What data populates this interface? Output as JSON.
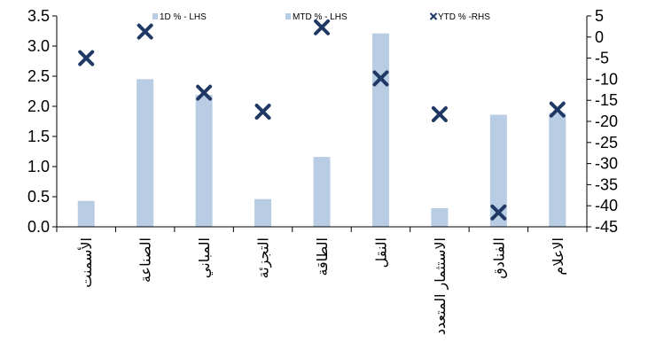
{
  "chart_data": {
    "type": "bar",
    "categories": [
      "الأسمنت",
      "الصناعة",
      "المباني",
      "التجزئة",
      "الطاقة",
      "النقل",
      "الاستثمار المتعدد",
      "الفنادق",
      "الاعلام"
    ],
    "series": [
      {
        "name": "1D % - LHS",
        "type": "bar",
        "axis": "left",
        "values": [
          null,
          null,
          null,
          null,
          null,
          null,
          null,
          null,
          null
        ]
      },
      {
        "name": "MTD % - LHS",
        "type": "bar",
        "axis": "left",
        "values": [
          0.43,
          2.45,
          2.19,
          0.46,
          1.16,
          3.21,
          0.31,
          1.86,
          1.89
        ]
      },
      {
        "name": "YTD % -RHS",
        "type": "scatter",
        "axis": "right",
        "values": [
          -5.0,
          1.3,
          -13.2,
          -17.7,
          2.3,
          -9.8,
          -18.3,
          -41.6,
          -17.2
        ]
      }
    ],
    "y_left": {
      "min": 0,
      "max": 3.5,
      "ticks": [
        "0.0",
        "0.5",
        "1.0",
        "1.5",
        "2.0",
        "2.5",
        "3.0",
        "3.5"
      ]
    },
    "y_right": {
      "min": -45,
      "max": 5,
      "ticks": [
        "-45",
        "-40",
        "-35",
        "-30",
        "-25",
        "-20",
        "-15",
        "-10",
        "-5",
        "0",
        "5"
      ]
    },
    "legend": {
      "placement": "top",
      "entries": [
        {
          "label": "1D % - LHS",
          "marker": "square",
          "color": "#b8cce4"
        },
        {
          "label": "MTD % - LHS",
          "marker": "square",
          "color": "#b8cce4"
        },
        {
          "label": "YTD % -RHS",
          "marker": "x",
          "color": "#1f3864"
        }
      ]
    },
    "colors": {
      "bar": "#b8cce4",
      "marker": "#1f3864",
      "axis": "#000000"
    }
  }
}
